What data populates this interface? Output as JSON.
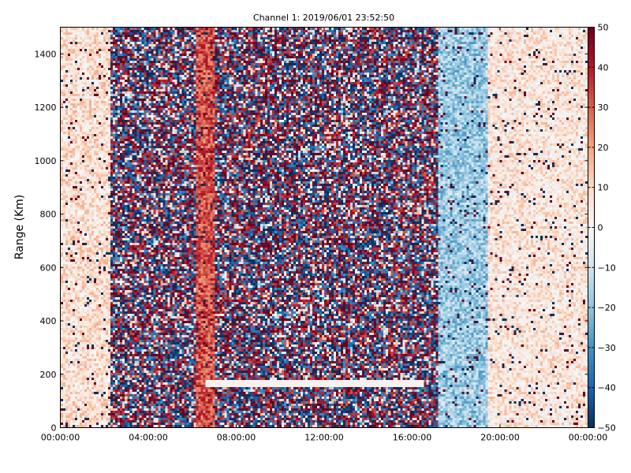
{
  "chart_data": {
    "type": "heatmap",
    "title": "Channel 1: 2019/06/01 23:52:50",
    "xlabel": "",
    "ylabel": "Range (Km)",
    "x_tick_labels": [
      "00:00:00",
      "04:00:00",
      "08:00:00",
      "12:00:00",
      "16:00:00",
      "20:00:00",
      "00:00:00"
    ],
    "xlim_hours": [
      0,
      24
    ],
    "y_ticks": [
      0,
      200,
      400,
      600,
      800,
      1000,
      1200,
      1400
    ],
    "ylim": [
      0,
      1500
    ],
    "colorbar": {
      "ticks": [
        -50,
        -40,
        -30,
        -20,
        -10,
        0,
        10,
        20,
        30,
        40,
        50
      ],
      "range": [
        -50,
        50
      ],
      "colormap": "RdBu_r"
    },
    "grid": false,
    "regions": [
      {
        "hours": [
          0,
          2.3
        ],
        "pattern": "smooth",
        "mean": 8
      },
      {
        "hours": [
          2.3,
          6.2
        ],
        "pattern": "noisy",
        "mean": 0
      },
      {
        "hours": [
          6.2,
          7.0
        ],
        "pattern": "smooth",
        "mean": 32
      },
      {
        "hours": [
          7.0,
          17.2
        ],
        "pattern": "noisy",
        "mean": 0
      },
      {
        "hours": [
          17.2,
          19.5
        ],
        "pattern": "smooth",
        "mean": -18
      },
      {
        "hours": [
          19.5,
          24
        ],
        "pattern": "smooth",
        "mean": 6
      }
    ],
    "features": [
      {
        "description": "horizontal white band",
        "hours": [
          6.6,
          16.5
        ],
        "range_km": [
          150,
          180
        ]
      }
    ]
  },
  "colors": {
    "low": "#053061",
    "mid": "#f7f7f7",
    "high": "#67001f",
    "axis": "#000000"
  }
}
